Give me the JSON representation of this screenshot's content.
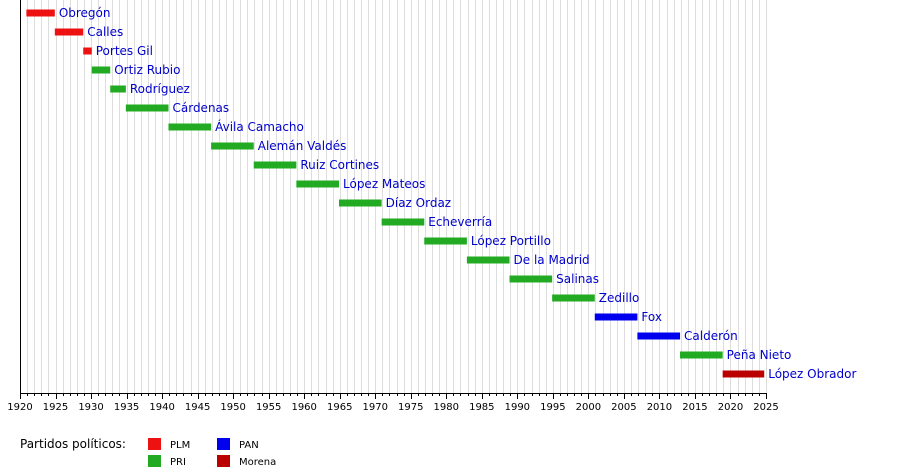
{
  "chart_data": {
    "type": "bar",
    "orientation": "horizontal-timeline",
    "xlim": [
      1920,
      2025
    ],
    "x_ticks": [
      1920,
      1925,
      1930,
      1935,
      1940,
      1945,
      1950,
      1955,
      1960,
      1965,
      1970,
      1975,
      1980,
      1985,
      1990,
      1995,
      2000,
      2005,
      2010,
      2015,
      2020,
      2025
    ],
    "grid": "vertical lines every year",
    "parties": [
      {
        "key": "PLM",
        "name": "PLM",
        "color": "#ee1111"
      },
      {
        "key": "PRI",
        "name": "PRI",
        "color": "#22aa22"
      },
      {
        "key": "PAN",
        "name": "PAN",
        "color": "#0000ee"
      },
      {
        "key": "Morena",
        "name": "Morena",
        "color": "#bb0000"
      }
    ],
    "legend_title": "Partidos políticos:",
    "bars": [
      {
        "label": "Obregón",
        "start": 1920.9,
        "end": 1924.9,
        "party": "PLM"
      },
      {
        "label": "Calles",
        "start": 1924.9,
        "end": 1928.9,
        "party": "PLM"
      },
      {
        "label": "Portes Gil",
        "start": 1928.9,
        "end": 1930.1,
        "party": "PLM"
      },
      {
        "label": "Ortiz Rubio",
        "start": 1930.1,
        "end": 1932.7,
        "party": "PRI"
      },
      {
        "label": "Rodríguez",
        "start": 1932.7,
        "end": 1934.9,
        "party": "PRI"
      },
      {
        "label": "Cárdenas",
        "start": 1934.9,
        "end": 1940.9,
        "party": "PRI"
      },
      {
        "label": "Ávila Camacho",
        "start": 1940.9,
        "end": 1946.9,
        "party": "PRI"
      },
      {
        "label": "Alemán Valdés",
        "start": 1946.9,
        "end": 1952.9,
        "party": "PRI"
      },
      {
        "label": "Ruiz Cortines",
        "start": 1952.9,
        "end": 1958.9,
        "party": "PRI"
      },
      {
        "label": "López Mateos",
        "start": 1958.9,
        "end": 1964.9,
        "party": "PRI"
      },
      {
        "label": "Díaz Ordaz",
        "start": 1964.9,
        "end": 1970.9,
        "party": "PRI"
      },
      {
        "label": "Echeverría",
        "start": 1970.9,
        "end": 1976.9,
        "party": "PRI"
      },
      {
        "label": "López Portillo",
        "start": 1976.9,
        "end": 1982.9,
        "party": "PRI"
      },
      {
        "label": "De la Madrid",
        "start": 1982.9,
        "end": 1988.9,
        "party": "PRI"
      },
      {
        "label": "Salinas",
        "start": 1988.9,
        "end": 1994.9,
        "party": "PRI"
      },
      {
        "label": "Zedillo",
        "start": 1994.9,
        "end": 2000.9,
        "party": "PRI"
      },
      {
        "label": "Fox",
        "start": 2000.9,
        "end": 2006.9,
        "party": "PAN"
      },
      {
        "label": "Calderón",
        "start": 2006.9,
        "end": 2012.9,
        "party": "PAN"
      },
      {
        "label": "Peña Nieto",
        "start": 2012.9,
        "end": 2018.9,
        "party": "PRI"
      },
      {
        "label": "López Obrador",
        "start": 2018.9,
        "end": 2024.75,
        "party": "Morena"
      }
    ]
  }
}
